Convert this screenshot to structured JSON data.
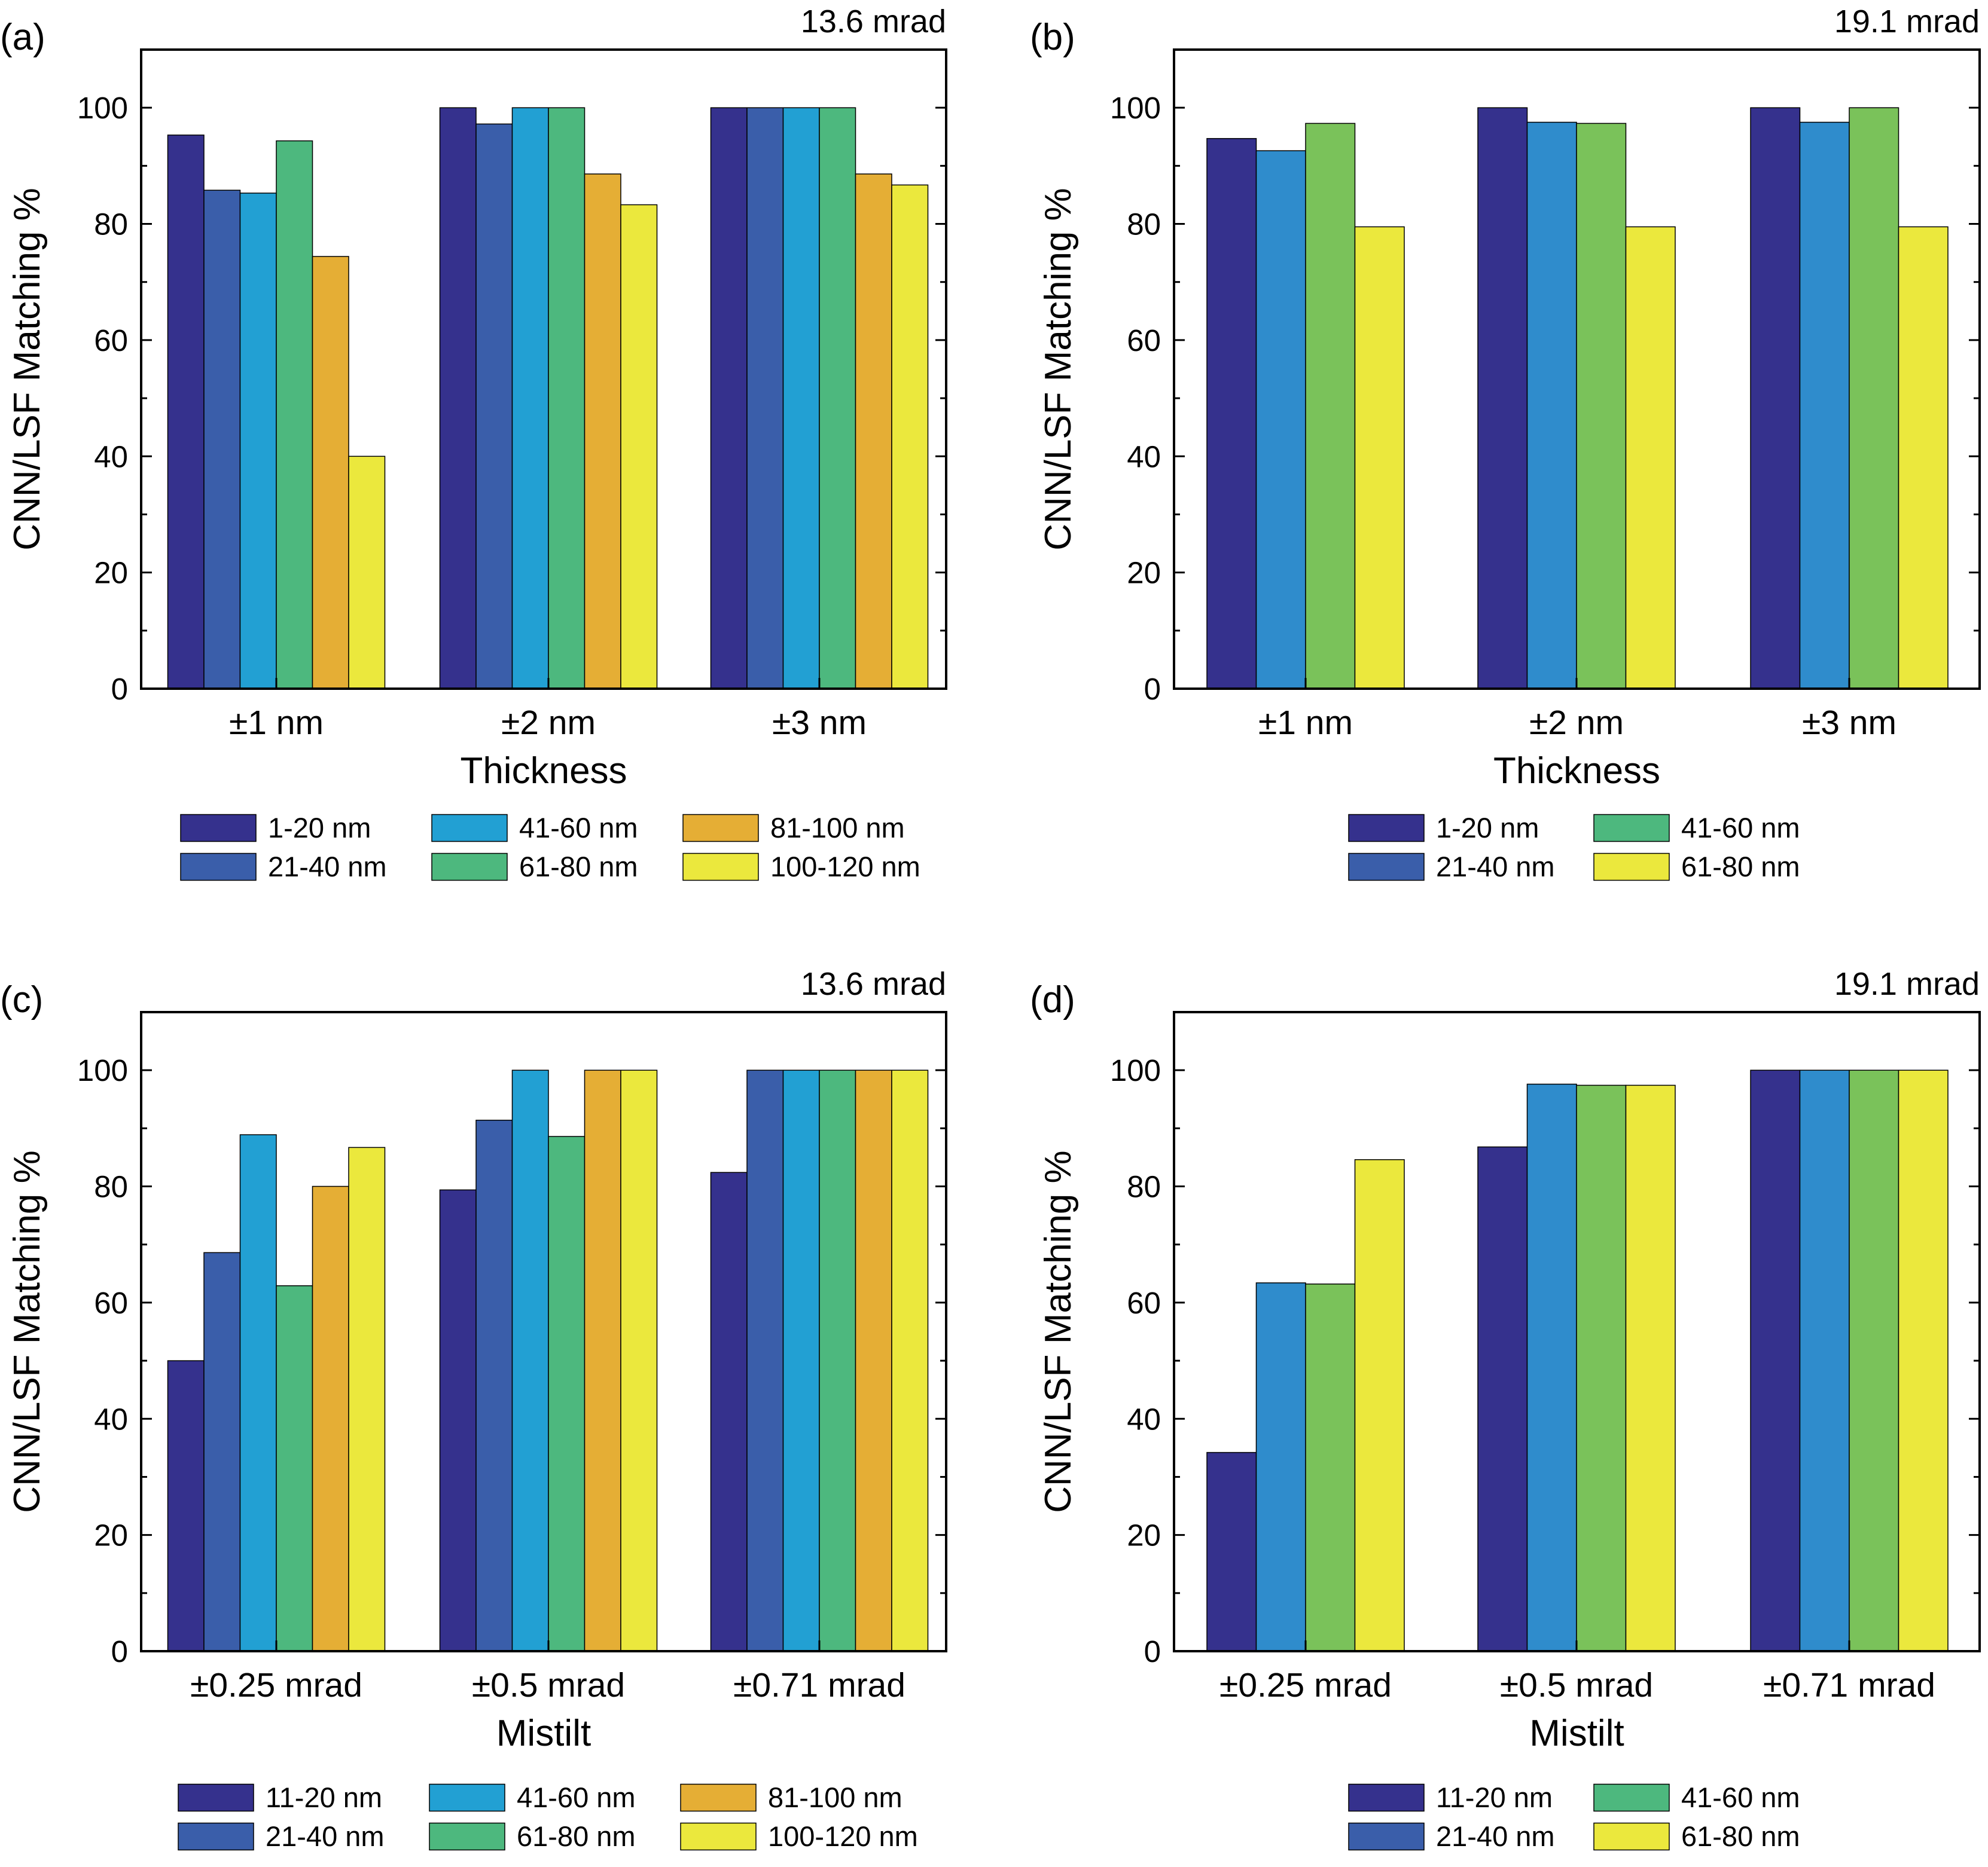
{
  "colors": {
    "c6": [
      "#35318d",
      "#3a5eaa",
      "#22a0d3",
      "#4db87e",
      "#e5ae35",
      "#ebe83d"
    ],
    "c4": [
      "#35318d",
      "#2f8ccc",
      "#7ac25a",
      "#ebe83d"
    ],
    "legend4": [
      "#35318d",
      "#3a5eaa",
      "#4db87e",
      "#ebe83d"
    ]
  },
  "chart_data": [
    {
      "panel": "(a)",
      "type": "bar",
      "subtitle": "13.6 mrad",
      "xlabel": "Thickness",
      "ylabel": "CNN/LSF Matching %",
      "ylim": [
        0,
        110
      ],
      "yticks": [
        "0",
        "20",
        "40",
        "60",
        "80",
        "100"
      ],
      "grid": false,
      "legend_position": "bottom",
      "categories": [
        "±1 nm",
        "±2 nm",
        "±3 nm"
      ],
      "series": [
        {
          "name": "1-20 nm",
          "values": [
            95.3,
            100,
            100
          ]
        },
        {
          "name": "21-40 nm",
          "values": [
            85.8,
            97.2,
            100
          ]
        },
        {
          "name": "41-60 nm",
          "values": [
            85.3,
            100,
            100
          ]
        },
        {
          "name": "61-80 nm",
          "values": [
            94.3,
            100,
            100
          ]
        },
        {
          "name": "81-100 nm",
          "values": [
            74.4,
            88.6,
            88.6
          ]
        },
        {
          "name": "100-120 nm",
          "values": [
            40.0,
            83.3,
            86.7
          ]
        }
      ]
    },
    {
      "panel": "(b)",
      "type": "bar",
      "subtitle": "19.1 mrad",
      "xlabel": "Thickness",
      "ylabel": "CNN/LSF Matching %",
      "ylim": [
        0,
        110
      ],
      "yticks": [
        "0",
        "20",
        "40",
        "60",
        "80",
        "100"
      ],
      "grid": false,
      "legend_position": "bottom",
      "categories": [
        "±1 nm",
        "±2 nm",
        "±3 nm"
      ],
      "series": [
        {
          "name": "1-20 nm",
          "values": [
            94.7,
            100,
            100
          ]
        },
        {
          "name": "21-40 nm",
          "values": [
            92.6,
            97.5,
            97.5
          ]
        },
        {
          "name": "41-60 nm",
          "values": [
            97.3,
            97.3,
            100
          ]
        },
        {
          "name": "61-80 nm",
          "values": [
            79.5,
            79.5,
            79.5
          ]
        }
      ]
    },
    {
      "panel": "(c)",
      "type": "bar",
      "subtitle": "13.6 mrad",
      "xlabel": "Mistilt",
      "ylabel": "CNN/LSF Matching %",
      "ylim": [
        0,
        110
      ],
      "yticks": [
        "0",
        "20",
        "40",
        "60",
        "80",
        "100"
      ],
      "grid": false,
      "legend_position": "bottom",
      "categories": [
        "±0.25 mrad",
        "±0.5 mrad",
        "±0.71 mrad"
      ],
      "series": [
        {
          "name": "11-20 nm",
          "values": [
            50.0,
            79.4,
            82.4
          ]
        },
        {
          "name": "21-40 nm",
          "values": [
            68.6,
            91.4,
            100
          ]
        },
        {
          "name": "41-60 nm",
          "values": [
            88.9,
            100,
            100
          ]
        },
        {
          "name": "61-80 nm",
          "values": [
            62.9,
            88.6,
            100
          ]
        },
        {
          "name": "81-100 nm",
          "values": [
            80.0,
            100,
            100
          ]
        },
        {
          "name": "100-120 nm",
          "values": [
            86.7,
            100,
            100
          ]
        }
      ]
    },
    {
      "panel": "(d)",
      "type": "bar",
      "subtitle": "19.1 mrad",
      "xlabel": "Mistilt",
      "ylabel": "CNN/LSF Matching %",
      "ylim": [
        0,
        110
      ],
      "yticks": [
        "0",
        "20",
        "40",
        "60",
        "80",
        "100"
      ],
      "grid": false,
      "legend_position": "bottom",
      "categories": [
        "±0.25 mrad",
        "±0.5 mrad",
        "±0.71 mrad"
      ],
      "series": [
        {
          "name": "11-20 nm",
          "values": [
            34.2,
            86.8,
            100
          ]
        },
        {
          "name": "21-40 nm",
          "values": [
            63.4,
            97.6,
            100
          ]
        },
        {
          "name": "41-60 nm",
          "values": [
            63.2,
            97.4,
            100
          ]
        },
        {
          "name": "61-80 nm",
          "values": [
            84.6,
            97.4,
            100
          ]
        }
      ]
    }
  ]
}
